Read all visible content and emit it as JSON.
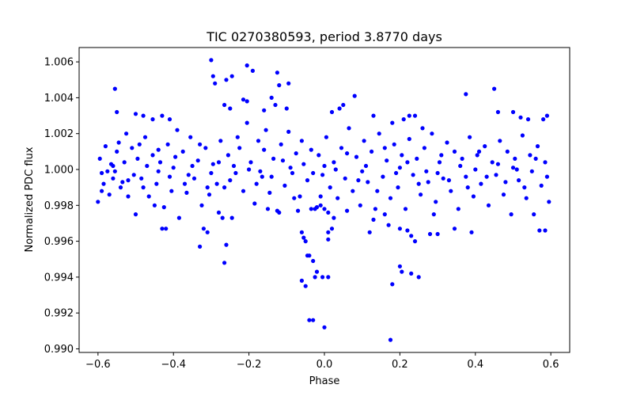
{
  "chart_data": {
    "type": "scatter",
    "title": "TIC 0270380593, period 3.8770 days",
    "xlabel": "Phase",
    "ylabel": "Normalized PDC flux",
    "xlim": [
      -0.65,
      0.65
    ],
    "ylim": [
      0.9898,
      1.0068
    ],
    "xticks": [
      -0.6,
      -0.4,
      -0.2,
      0.0,
      0.2,
      0.4,
      0.6
    ],
    "xtick_labels": [
      "−0.6",
      "−0.4",
      "−0.2",
      "0.0",
      "0.2",
      "0.4",
      "0.6"
    ],
    "yticks": [
      0.99,
      0.992,
      0.994,
      0.996,
      0.998,
      1.0,
      1.002,
      1.004,
      1.006
    ],
    "ytick_labels": [
      "0.990",
      "0.992",
      "0.994",
      "0.996",
      "0.998",
      "1.000",
      "1.002",
      "1.004",
      "1.006"
    ],
    "marker_color": "#0000ff",
    "series": [
      {
        "name": "flux",
        "points": [
          [
            -0.3,
            1.0061
          ],
          [
            -0.295,
            1.0052
          ],
          [
            -0.29,
            1.0048
          ],
          [
            -0.26,
            1.005
          ],
          [
            -0.245,
            1.0052
          ],
          [
            -0.265,
            1.0036
          ],
          [
            -0.25,
            1.0034
          ],
          [
            -0.215,
            1.0039
          ],
          [
            -0.205,
            1.0038
          ],
          [
            -0.205,
            1.0058
          ],
          [
            -0.19,
            1.0055
          ],
          [
            -0.14,
            1.004
          ],
          [
            -0.125,
            1.0054
          ],
          [
            -0.12,
            1.0047
          ],
          [
            -0.095,
            1.0048
          ],
          [
            -0.1,
            1.0034
          ],
          [
            -0.13,
            1.0036
          ],
          [
            -0.16,
            1.0033
          ],
          [
            -0.555,
            1.0045
          ],
          [
            -0.55,
            1.0032
          ],
          [
            -0.5,
            1.0031
          ],
          [
            -0.48,
            1.003
          ],
          [
            -0.43,
            1.003
          ],
          [
            -0.41,
            1.0028
          ],
          [
            -0.455,
            1.0028
          ],
          [
            0.02,
            1.0032
          ],
          [
            0.04,
            1.0034
          ],
          [
            0.05,
            1.0036
          ],
          [
            0.08,
            1.0041
          ],
          [
            0.13,
            1.003
          ],
          [
            0.18,
            1.0026
          ],
          [
            0.21,
            1.0028
          ],
          [
            0.225,
            1.003
          ],
          [
            0.24,
            1.003
          ],
          [
            0.26,
            1.0023
          ],
          [
            0.375,
            1.0042
          ],
          [
            0.45,
            1.0045
          ],
          [
            0.46,
            1.0032
          ],
          [
            0.5,
            1.0032
          ],
          [
            0.52,
            1.0029
          ],
          [
            0.54,
            1.0028
          ],
          [
            0.59,
            1.003
          ],
          [
            0.58,
            1.0028
          ],
          [
            -0.33,
            0.9957
          ],
          [
            -0.31,
            0.9965
          ],
          [
            -0.32,
            0.9967
          ],
          [
            -0.26,
            0.9958
          ],
          [
            -0.265,
            0.9948
          ],
          [
            -0.43,
            0.9967
          ],
          [
            -0.42,
            0.9967
          ],
          [
            -0.06,
            0.9965
          ],
          [
            -0.055,
            0.9962
          ],
          [
            -0.05,
            0.996
          ],
          [
            -0.045,
            0.9952
          ],
          [
            -0.04,
            0.9952
          ],
          [
            -0.03,
            0.9949
          ],
          [
            -0.02,
            0.9943
          ],
          [
            -0.06,
            0.9938
          ],
          [
            -0.05,
            0.9935
          ],
          [
            -0.025,
            0.994
          ],
          [
            -0.005,
            0.994
          ],
          [
            0.01,
            0.994
          ],
          [
            -0.04,
            0.9916
          ],
          [
            -0.03,
            0.9916
          ],
          [
            0.0,
            0.9912
          ],
          [
            0.01,
            0.9961
          ],
          [
            0.01,
            0.9965
          ],
          [
            0.02,
            0.9967
          ],
          [
            0.12,
            0.9965
          ],
          [
            0.17,
            0.9969
          ],
          [
            0.2,
            0.9967
          ],
          [
            0.22,
            0.9966
          ],
          [
            0.23,
            0.9963
          ],
          [
            0.24,
            0.996
          ],
          [
            0.2,
            0.9946
          ],
          [
            0.205,
            0.9943
          ],
          [
            0.23,
            0.9942
          ],
          [
            0.25,
            0.994
          ],
          [
            0.18,
            0.9936
          ],
          [
            0.175,
            0.9905
          ],
          [
            0.28,
            0.9964
          ],
          [
            0.3,
            0.9964
          ],
          [
            0.345,
            0.9967
          ],
          [
            0.39,
            0.9965
          ],
          [
            0.57,
            0.9966
          ],
          [
            0.585,
            0.9966
          ],
          [
            -0.6,
            0.9982
          ],
          [
            -0.59,
            0.9988
          ],
          [
            -0.585,
            0.9992
          ],
          [
            -0.575,
            0.9999
          ],
          [
            -0.565,
            1.0003
          ],
          [
            -0.56,
            0.9995
          ],
          [
            -0.55,
            1.001
          ],
          [
            -0.545,
            1.0015
          ],
          [
            -0.54,
            0.999
          ],
          [
            -0.53,
            1.0004
          ],
          [
            -0.52,
            0.9985
          ],
          [
            -0.51,
            1.0012
          ],
          [
            -0.5,
            0.9975
          ],
          [
            -0.495,
            1.0006
          ],
          [
            -0.485,
            0.9995
          ],
          [
            -0.475,
            1.0018
          ],
          [
            -0.465,
            0.9985
          ],
          [
            -0.455,
            1.0008
          ],
          [
            -0.445,
            0.9992
          ],
          [
            -0.435,
            1.0004
          ],
          [
            -0.425,
            0.9979
          ],
          [
            -0.415,
            1.0014
          ],
          [
            -0.405,
            0.9988
          ],
          [
            -0.395,
            1.0007
          ],
          [
            -0.385,
            0.9973
          ],
          [
            -0.375,
            1.001
          ],
          [
            -0.365,
            0.9987
          ],
          [
            -0.355,
            1.0018
          ],
          [
            -0.345,
            0.9995
          ],
          [
            -0.335,
            1.0005
          ],
          [
            -0.325,
            0.998
          ],
          [
            -0.315,
            1.0012
          ],
          [
            -0.305,
            0.9986
          ],
          [
            -0.295,
            1.0003
          ],
          [
            -0.285,
            0.9992
          ],
          [
            -0.275,
            1.0016
          ],
          [
            -0.265,
            0.999
          ],
          [
            -0.255,
            1.0008
          ],
          [
            -0.245,
            0.9973
          ],
          [
            -0.235,
            0.9998
          ],
          [
            -0.225,
            1.0012
          ],
          [
            -0.215,
            0.9988
          ],
          [
            -0.205,
            1.0026
          ],
          [
            -0.195,
            1.0004
          ],
          [
            -0.185,
            0.9981
          ],
          [
            -0.175,
            1.0016
          ],
          [
            -0.165,
            0.9996
          ],
          [
            -0.155,
            1.0022
          ],
          [
            -0.145,
            0.9987
          ],
          [
            -0.135,
            1.0006
          ],
          [
            -0.125,
            0.9977
          ],
          [
            -0.115,
            1.0014
          ],
          [
            -0.105,
            0.9991
          ],
          [
            -0.095,
            1.0021
          ],
          [
            -0.085,
            0.9998
          ],
          [
            -0.075,
            1.0009
          ],
          [
            -0.065,
            0.9985
          ],
          [
            -0.055,
            1.0003
          ],
          [
            -0.045,
            0.9994
          ],
          [
            -0.035,
            1.0011
          ],
          [
            -0.025,
            0.9978
          ],
          [
            -0.015,
            1.0008
          ],
          [
            -0.005,
            0.9997
          ],
          [
            0.005,
            1.0018
          ],
          [
            0.015,
            0.999
          ],
          [
            0.025,
            1.0004
          ],
          [
            0.035,
            0.9984
          ],
          [
            0.045,
            1.0012
          ],
          [
            0.055,
            0.9995
          ],
          [
            0.065,
            1.0023
          ],
          [
            0.075,
            0.9988
          ],
          [
            0.085,
            1.0007
          ],
          [
            0.095,
            0.998
          ],
          [
            0.105,
            1.0016
          ],
          [
            0.115,
            0.9993
          ],
          [
            0.125,
            1.001
          ],
          [
            0.135,
            0.9978
          ],
          [
            0.145,
            1.002
          ],
          [
            0.155,
            0.9996
          ],
          [
            0.165,
            1.0005
          ],
          [
            0.175,
            0.9984
          ],
          [
            0.185,
            1.0014
          ],
          [
            0.195,
            0.999
          ],
          [
            0.205,
            1.0008
          ],
          [
            0.215,
            0.9978
          ],
          [
            0.225,
            1.0017
          ],
          [
            0.235,
            0.9997
          ],
          [
            0.245,
            1.0006
          ],
          [
            0.255,
            0.9986
          ],
          [
            0.265,
            1.0012
          ],
          [
            0.275,
            0.9993
          ],
          [
            0.285,
            1.002
          ],
          [
            0.295,
            0.9982
          ],
          [
            0.305,
            1.0004
          ],
          [
            0.315,
            0.9995
          ],
          [
            0.325,
            1.0015
          ],
          [
            0.335,
            0.9988
          ],
          [
            0.345,
            1.001
          ],
          [
            0.355,
            0.9978
          ],
          [
            0.365,
            1.0006
          ],
          [
            0.375,
            0.9996
          ],
          [
            0.385,
            1.0018
          ],
          [
            0.395,
            0.9985
          ],
          [
            0.405,
            1.0008
          ],
          [
            0.415,
            0.9992
          ],
          [
            0.425,
            1.0013
          ],
          [
            0.435,
            0.998
          ],
          [
            0.445,
            1.0004
          ],
          [
            0.455,
            0.9997
          ],
          [
            0.465,
            1.0016
          ],
          [
            0.475,
            0.9986
          ],
          [
            0.485,
            1.001
          ],
          [
            0.495,
            0.9975
          ],
          [
            0.505,
            1.0006
          ],
          [
            0.515,
            0.9994
          ],
          [
            0.525,
            1.0019
          ],
          [
            0.535,
            0.9984
          ],
          [
            0.545,
            1.0008
          ],
          [
            0.555,
            0.9975
          ],
          [
            0.565,
            1.0013
          ],
          [
            0.575,
            0.9991
          ],
          [
            0.585,
            1.0004
          ],
          [
            0.595,
            0.9982
          ],
          [
            -0.595,
            1.0006
          ],
          [
            -0.58,
            1.0013
          ],
          [
            -0.57,
            0.9986
          ],
          [
            -0.555,
            0.9999
          ],
          [
            -0.535,
            0.9993
          ],
          [
            -0.525,
            1.002
          ],
          [
            -0.505,
            0.9997
          ],
          [
            -0.49,
            1.0014
          ],
          [
            -0.47,
            1.0002
          ],
          [
            -0.45,
            0.998
          ],
          [
            -0.44,
            1.0011
          ],
          [
            -0.41,
            0.9996
          ],
          [
            -0.39,
            1.0022
          ],
          [
            -0.37,
            0.9992
          ],
          [
            -0.35,
            1.0002
          ],
          [
            -0.33,
            1.0014
          ],
          [
            -0.31,
            0.999
          ],
          [
            -0.28,
            1.0004
          ],
          [
            -0.25,
            0.9994
          ],
          [
            -0.23,
            1.0018
          ],
          [
            -0.2,
            1.0
          ],
          [
            -0.18,
            0.9992
          ],
          [
            -0.16,
            1.0011
          ],
          [
            -0.14,
            0.9996
          ],
          [
            -0.11,
            1.0005
          ],
          [
            -0.08,
            0.9984
          ],
          [
            -0.06,
            1.0016
          ],
          [
            -0.03,
            0.9998
          ],
          [
            -0.01,
            0.9985
          ],
          [
            0.03,
            1.0
          ],
          [
            0.06,
            1.0009
          ],
          [
            0.09,
            0.9994
          ],
          [
            0.11,
            1.0002
          ],
          [
            0.14,
            0.9988
          ],
          [
            0.16,
            1.0012
          ],
          [
            0.19,
            0.9998
          ],
          [
            0.22,
            1.0004
          ],
          [
            0.25,
            0.9992
          ],
          [
            0.27,
            0.9999
          ],
          [
            0.31,
            1.0008
          ],
          [
            0.33,
            0.9994
          ],
          [
            0.36,
            1.0002
          ],
          [
            0.38,
            0.999
          ],
          [
            0.41,
            1.001
          ],
          [
            0.43,
            0.9996
          ],
          [
            0.46,
            1.0003
          ],
          [
            0.48,
            0.9993
          ],
          [
            0.51,
            1.0
          ],
          [
            0.53,
            0.999
          ],
          [
            0.56,
            1.0006
          ],
          [
            0.59,
            0.9996
          ],
          [
            -0.59,
            0.9998
          ],
          [
            -0.56,
            1.0002
          ],
          [
            -0.52,
            0.9994
          ],
          [
            -0.48,
            0.999
          ],
          [
            -0.44,
            0.9999
          ],
          [
            -0.4,
            1.0001
          ],
          [
            -0.36,
            0.9997
          ],
          [
            -0.3,
            0.9998
          ],
          [
            -0.24,
            1.0002
          ],
          [
            -0.17,
            0.9999
          ],
          [
            -0.09,
            1.0001
          ],
          [
            0.0,
            1.0002
          ],
          [
            0.1,
            0.9999
          ],
          [
            0.2,
            1.0001
          ],
          [
            0.3,
            0.9998
          ],
          [
            0.4,
            1.0
          ],
          [
            0.5,
            1.0001
          ],
          [
            0.55,
            0.9999
          ],
          [
            -0.02,
            0.9979
          ],
          [
            -0.01,
            0.998
          ],
          [
            0.0,
            0.9978
          ],
          [
            0.01,
            0.9976
          ],
          [
            -0.035,
            0.9978
          ],
          [
            -0.07,
            0.9977
          ],
          [
            0.025,
            0.9973
          ],
          [
            0.06,
            0.9977
          ],
          [
            -0.15,
            0.9978
          ],
          [
            -0.12,
            0.9976
          ],
          [
            0.13,
            0.9972
          ],
          [
            0.16,
            0.9975
          ],
          [
            -0.28,
            0.9976
          ],
          [
            -0.27,
            0.9973
          ],
          [
            0.29,
            0.9975
          ]
        ]
      }
    ]
  }
}
